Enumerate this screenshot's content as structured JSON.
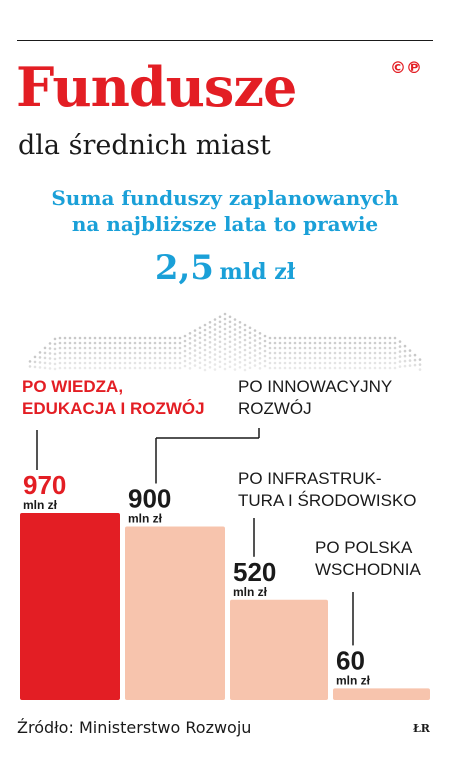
{
  "title": "Fundusze",
  "copyright_mark": "©℗",
  "subtitle": "dla średnich miast",
  "lead_lines": [
    "Suma funduszy zaplanowanych",
    "na najbliższe lata to prawie"
  ],
  "total": {
    "value": "2,5",
    "unit": "mld zł"
  },
  "source": "Źródło: Ministerstwo Rozwoju",
  "logo": "ŁR",
  "colors": {
    "accent_red": "#e31e24",
    "blue": "#1aa0d8",
    "bar_light": "#f7c4ad",
    "text": "#1a1a1a"
  },
  "chart_data": {
    "type": "bar",
    "categories": [
      [
        "PO WIEDZA,",
        "EDUKACJA I ROZWÓJ"
      ],
      [
        "PO INNOWACYJNY",
        "ROZWÓJ"
      ],
      [
        "PO INFRASTRUK-",
        "TURA I ŚRODOWISKO"
      ],
      [
        "PO POLSKA",
        "WSCHODNIA"
      ]
    ],
    "values": [
      970,
      900,
      520,
      60
    ],
    "value_labels": [
      "970",
      "900",
      "520",
      "60"
    ],
    "unit": "mln zł",
    "highlight_index": 0
  }
}
